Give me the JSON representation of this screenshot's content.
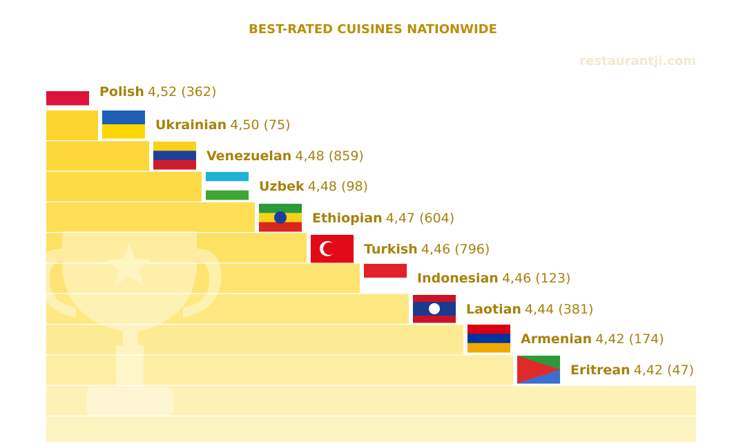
{
  "title": "BEST-RATED CUISINES NATIONWIDE",
  "watermark": "restaurantji.com",
  "items": [
    {
      "name": "Polish",
      "score": "4,52 (362)"
    },
    {
      "name": "Ukrainian",
      "score": "4,50 (75)"
    },
    {
      "name": "Venezuelan",
      "score": "4,48 (859)"
    },
    {
      "name": "Uzbek",
      "score": "4,48 (98)"
    },
    {
      "name": "Ethiopian",
      "score": "4,47 (604)"
    },
    {
      "name": "Turkish",
      "score": "4,46 (796)"
    },
    {
      "name": "Indonesian",
      "score": "4,46 (123)"
    },
    {
      "name": "Laotian",
      "score": "4,44 (381)"
    },
    {
      "name": "Armenian",
      "score": "4,42 (174)"
    },
    {
      "name": "Eritrean",
      "score": "4,42 (47)"
    }
  ]
}
